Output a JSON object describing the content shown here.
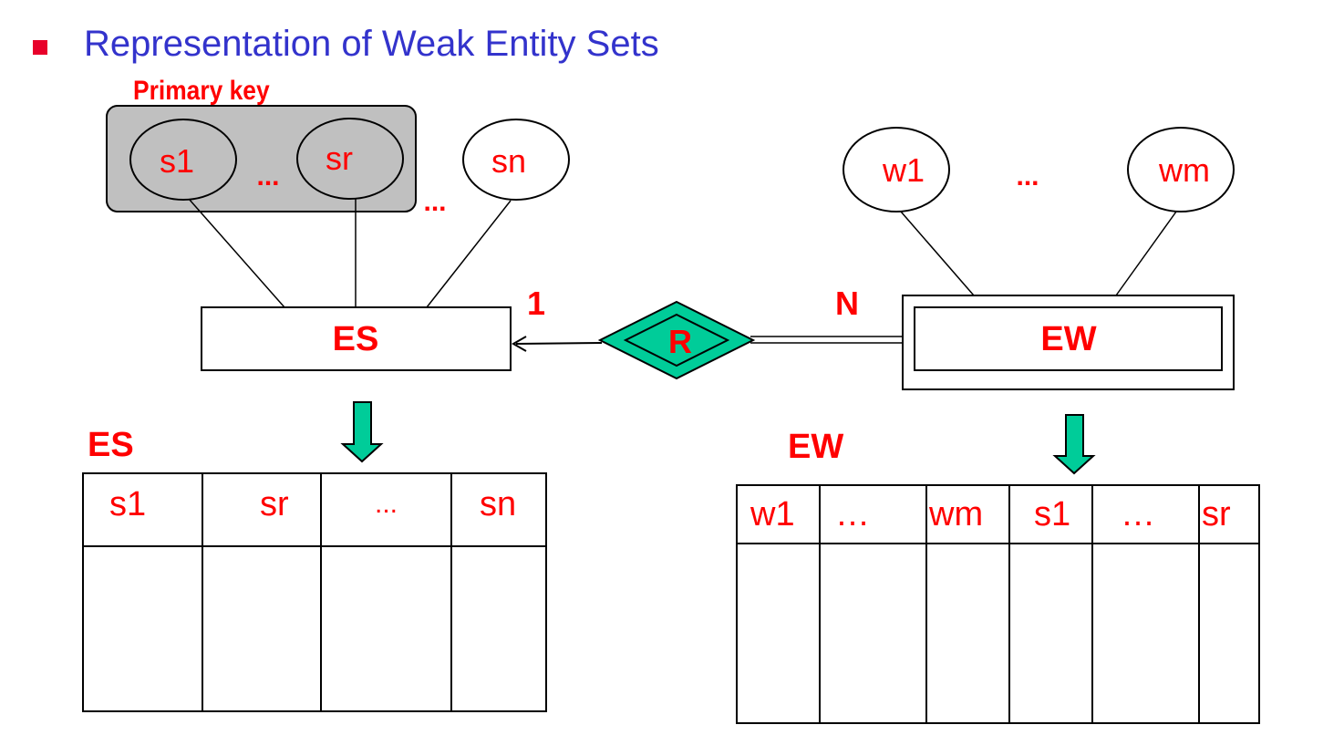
{
  "slide": {
    "title": "Representation of Weak Entity Sets"
  },
  "er": {
    "primary_key_label": "Primary key",
    "strong_attrs": [
      "s1",
      "...",
      "sr",
      "...",
      "sn"
    ],
    "weak_attrs": [
      "w1",
      "...",
      "wm"
    ],
    "strong_entity": "ES",
    "weak_entity": "EW",
    "relationship": "R",
    "card_strong": "1",
    "card_weak": "N"
  },
  "tables": {
    "es": {
      "title": "ES",
      "columns": [
        "s1",
        "sr",
        "...",
        "sn"
      ]
    },
    "ew": {
      "title": "EW",
      "columns": [
        "w1",
        "…",
        "wm",
        "s1",
        "…",
        "sr"
      ]
    }
  },
  "colors": {
    "title": "#3333cc",
    "bullet": "#e8002a",
    "text": "#ff0000",
    "key_box": "#c0c0c0",
    "arrow_fill": "#00cc99",
    "diamond_fill": "#00cc99"
  }
}
